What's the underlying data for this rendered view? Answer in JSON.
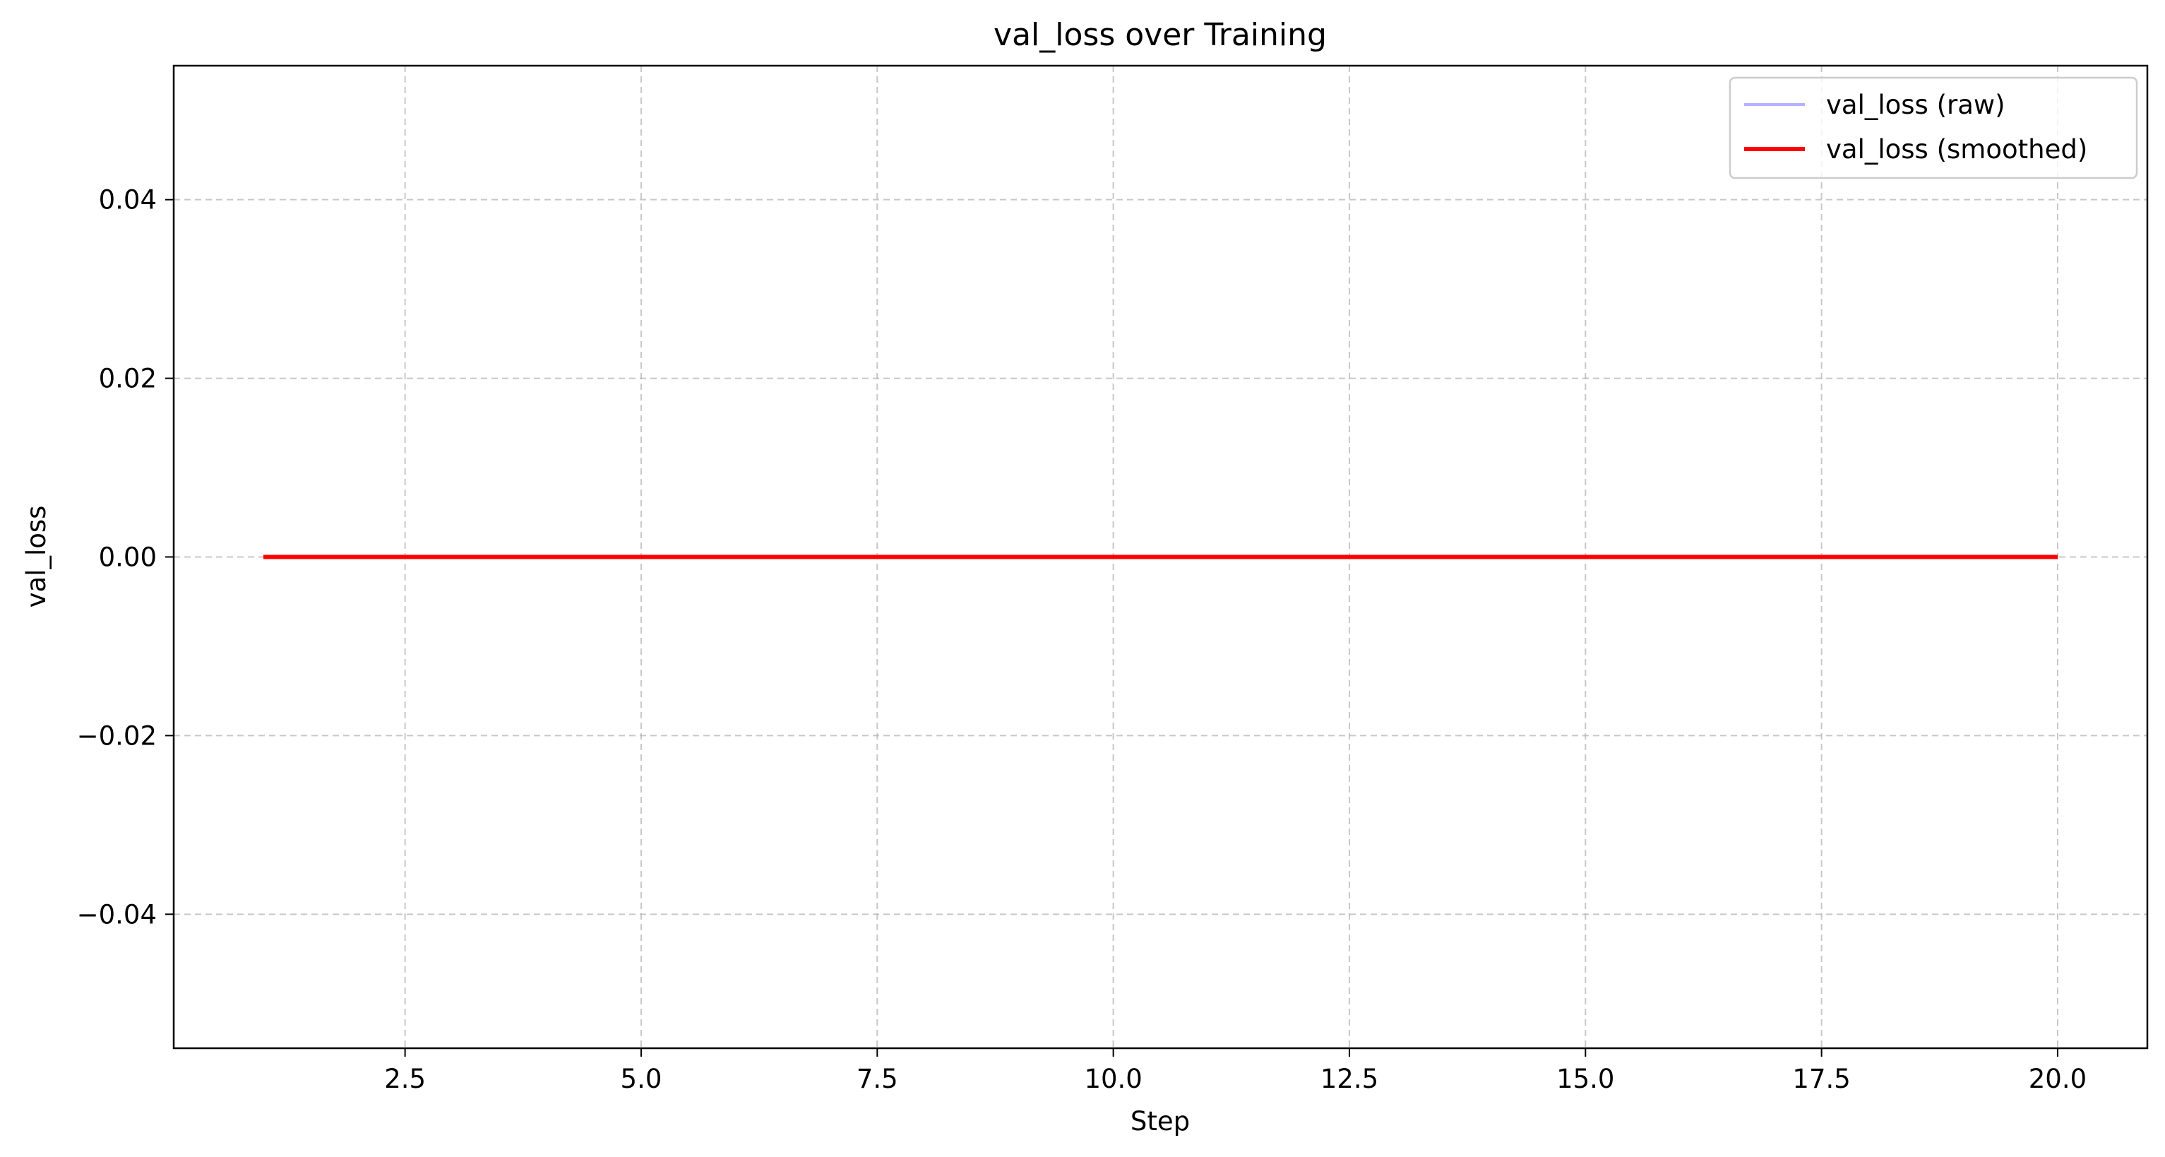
{
  "chart_data": {
    "type": "line",
    "title": "val_loss over Training",
    "xlabel": "Step",
    "ylabel": "val_loss",
    "xlim": [
      0.05,
      20.95
    ],
    "ylim": [
      -0.055,
      0.055
    ],
    "xticks": [
      2.5,
      5.0,
      7.5,
      10.0,
      12.5,
      15.0,
      17.5,
      20.0
    ],
    "xtick_labels": [
      "2.5",
      "5.0",
      "7.5",
      "10.0",
      "12.5",
      "15.0",
      "17.5",
      "20.0"
    ],
    "yticks": [
      -0.04,
      -0.02,
      0.0,
      0.02,
      0.04
    ],
    "ytick_labels": [
      "−0.04",
      "−0.02",
      "0.00",
      "0.02",
      "0.04"
    ],
    "grid": true,
    "legend_position": "top-right",
    "x": [
      1,
      2,
      3,
      4,
      5,
      6,
      7,
      8,
      9,
      10,
      11,
      12,
      13,
      14,
      15,
      16,
      17,
      18,
      19,
      20
    ],
    "series": [
      {
        "name": "val_loss (raw)",
        "color": "#b3b3ff",
        "values": [
          0,
          0,
          0,
          0,
          0,
          0,
          0,
          0,
          0,
          0,
          0,
          0,
          0,
          0,
          0,
          0,
          0,
          0,
          0,
          0
        ]
      },
      {
        "name": "val_loss (smoothed)",
        "color": "#ff0000",
        "values": [
          0,
          0,
          0,
          0,
          0,
          0,
          0,
          0,
          0,
          0,
          0,
          0,
          0,
          0,
          0,
          0,
          0,
          0,
          0,
          0
        ]
      }
    ]
  }
}
